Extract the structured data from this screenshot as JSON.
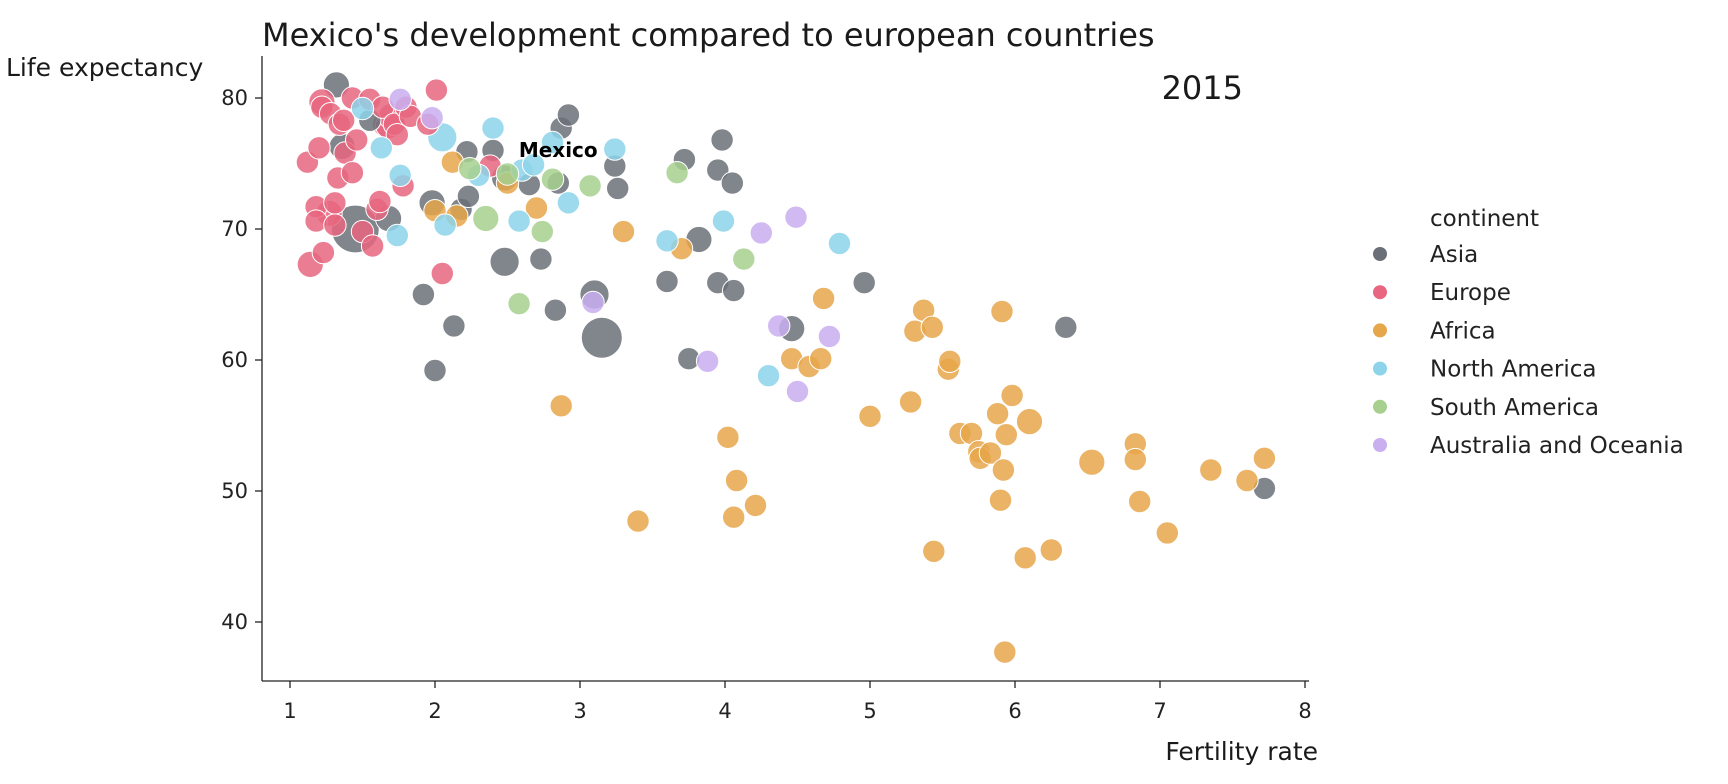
{
  "chart_data": {
    "type": "scatter",
    "title": "Mexico's development compared to european countries",
    "xlabel": "Fertility rate",
    "ylabel": "Life expectancy",
    "year_label": "2015",
    "xlim": [
      0.8,
      8.1
    ],
    "ylim": [
      35.5,
      83.5
    ],
    "xticks": [
      1,
      2,
      3,
      4,
      5,
      6,
      7,
      8
    ],
    "yticks": [
      40,
      50,
      60,
      70,
      80
    ],
    "legend": {
      "title": "continent",
      "position": "right",
      "entries": [
        "Asia",
        "Europe",
        "Africa",
        "North America",
        "South America",
        "Australia and Oceania"
      ]
    },
    "colors": {
      "Asia": "#6b7078",
      "Europe": "#e8667f",
      "Africa": "#e6a64a",
      "North America": "#8dd3ea",
      "South America": "#a7d08f",
      "Australia and Oceania": "#c9aef0"
    },
    "annotation": {
      "text": "Mexico",
      "x": 2.85,
      "y": 74.9
    },
    "series": [
      {
        "name": "Asia",
        "points": [
          {
            "x": 1.32,
            "y": 81.0,
            "s": 2
          },
          {
            "x": 1.36,
            "y": 76.3,
            "s": 2
          },
          {
            "x": 1.45,
            "y": 70.0,
            "s": 14
          },
          {
            "x": 1.55,
            "y": 78.3,
            "s": 1
          },
          {
            "x": 1.68,
            "y": 70.8,
            "s": 2
          },
          {
            "x": 1.92,
            "y": 65.0,
            "s": 1
          },
          {
            "x": 1.98,
            "y": 72.0,
            "s": 2
          },
          {
            "x": 2.0,
            "y": 59.2,
            "s": 1
          },
          {
            "x": 2.13,
            "y": 62.6,
            "s": 1
          },
          {
            "x": 2.18,
            "y": 71.5,
            "s": 1
          },
          {
            "x": 2.23,
            "y": 72.5,
            "s": 1
          },
          {
            "x": 2.22,
            "y": 75.9,
            "s": 1
          },
          {
            "x": 2.4,
            "y": 76.0,
            "s": 1
          },
          {
            "x": 2.48,
            "y": 73.9,
            "s": 2
          },
          {
            "x": 2.48,
            "y": 67.5,
            "s": 3
          },
          {
            "x": 2.65,
            "y": 73.4,
            "s": 1
          },
          {
            "x": 2.73,
            "y": 67.7,
            "s": 1
          },
          {
            "x": 2.83,
            "y": 63.8,
            "s": 1
          },
          {
            "x": 2.85,
            "y": 73.5,
            "s": 1
          },
          {
            "x": 2.87,
            "y": 77.7,
            "s": 1
          },
          {
            "x": 2.92,
            "y": 78.7,
            "s": 1
          },
          {
            "x": 3.1,
            "y": 65.0,
            "s": 3
          },
          {
            "x": 3.15,
            "y": 61.7,
            "s": 9
          },
          {
            "x": 3.24,
            "y": 74.8,
            "s": 1
          },
          {
            "x": 3.26,
            "y": 73.1,
            "s": 1
          },
          {
            "x": 3.6,
            "y": 66.0,
            "s": 1
          },
          {
            "x": 3.72,
            "y": 75.3,
            "s": 1
          },
          {
            "x": 3.75,
            "y": 60.1,
            "s": 1
          },
          {
            "x": 3.82,
            "y": 69.2,
            "s": 2
          },
          {
            "x": 3.95,
            "y": 74.5,
            "s": 1
          },
          {
            "x": 3.95,
            "y": 65.9,
            "s": 1
          },
          {
            "x": 3.98,
            "y": 76.8,
            "s": 1
          },
          {
            "x": 4.05,
            "y": 73.5,
            "s": 1
          },
          {
            "x": 4.06,
            "y": 65.3,
            "s": 1
          },
          {
            "x": 4.46,
            "y": 62.4,
            "s": 2
          },
          {
            "x": 4.96,
            "y": 65.9,
            "s": 1
          },
          {
            "x": 6.35,
            "y": 62.5,
            "s": 1
          },
          {
            "x": 7.72,
            "y": 50.2,
            "s": 1
          }
        ]
      },
      {
        "name": "Europe",
        "points": [
          {
            "x": 1.12,
            "y": 75.1,
            "s": 1
          },
          {
            "x": 1.14,
            "y": 67.3,
            "s": 2
          },
          {
            "x": 1.18,
            "y": 71.7,
            "s": 1
          },
          {
            "x": 1.18,
            "y": 70.6,
            "s": 1
          },
          {
            "x": 1.2,
            "y": 76.2,
            "s": 1
          },
          {
            "x": 1.22,
            "y": 79.7,
            "s": 2
          },
          {
            "x": 1.22,
            "y": 79.3,
            "s": 1
          },
          {
            "x": 1.23,
            "y": 68.2,
            "s": 1
          },
          {
            "x": 1.27,
            "y": 71.2,
            "s": 2
          },
          {
            "x": 1.28,
            "y": 78.8,
            "s": 1
          },
          {
            "x": 1.31,
            "y": 70.3,
            "s": 1
          },
          {
            "x": 1.31,
            "y": 72.0,
            "s": 1
          },
          {
            "x": 1.33,
            "y": 73.9,
            "s": 1
          },
          {
            "x": 1.34,
            "y": 78.0,
            "s": 1
          },
          {
            "x": 1.37,
            "y": 78.3,
            "s": 1
          },
          {
            "x": 1.38,
            "y": 75.8,
            "s": 1
          },
          {
            "x": 1.43,
            "y": 80.0,
            "s": 1
          },
          {
            "x": 1.43,
            "y": 74.3,
            "s": 1
          },
          {
            "x": 1.46,
            "y": 76.8,
            "s": 1
          },
          {
            "x": 1.5,
            "y": 69.8,
            "s": 1
          },
          {
            "x": 1.55,
            "y": 79.9,
            "s": 1
          },
          {
            "x": 1.57,
            "y": 68.7,
            "s": 1
          },
          {
            "x": 1.6,
            "y": 71.5,
            "s": 1
          },
          {
            "x": 1.62,
            "y": 72.1,
            "s": 1
          },
          {
            "x": 1.64,
            "y": 79.3,
            "s": 1
          },
          {
            "x": 1.66,
            "y": 78.0,
            "s": 2
          },
          {
            "x": 1.68,
            "y": 77.9,
            "s": 2
          },
          {
            "x": 1.7,
            "y": 78.6,
            "s": 2
          },
          {
            "x": 1.72,
            "y": 78.0,
            "s": 1
          },
          {
            "x": 1.74,
            "y": 77.2,
            "s": 1
          },
          {
            "x": 1.78,
            "y": 73.3,
            "s": 1
          },
          {
            "x": 1.8,
            "y": 79.3,
            "s": 1
          },
          {
            "x": 1.83,
            "y": 78.6,
            "s": 1
          },
          {
            "x": 1.95,
            "y": 78.0,
            "s": 1
          },
          {
            "x": 2.01,
            "y": 80.6,
            "s": 1
          },
          {
            "x": 2.05,
            "y": 66.6,
            "s": 1
          },
          {
            "x": 2.38,
            "y": 74.8,
            "s": 1
          }
        ]
      },
      {
        "name": "Africa",
        "points": [
          {
            "x": 2.0,
            "y": 71.4,
            "s": 1
          },
          {
            "x": 2.12,
            "y": 75.1,
            "s": 1
          },
          {
            "x": 2.15,
            "y": 71.0,
            "s": 1
          },
          {
            "x": 2.5,
            "y": 73.5,
            "s": 1
          },
          {
            "x": 2.7,
            "y": 71.6,
            "s": 1
          },
          {
            "x": 2.87,
            "y": 56.5,
            "s": 1
          },
          {
            "x": 3.3,
            "y": 69.8,
            "s": 1
          },
          {
            "x": 3.4,
            "y": 47.7,
            "s": 1
          },
          {
            "x": 3.7,
            "y": 68.5,
            "s": 1
          },
          {
            "x": 4.02,
            "y": 54.1,
            "s": 1
          },
          {
            "x": 4.06,
            "y": 48.0,
            "s": 1
          },
          {
            "x": 4.08,
            "y": 50.8,
            "s": 1
          },
          {
            "x": 4.21,
            "y": 48.9,
            "s": 1
          },
          {
            "x": 4.46,
            "y": 60.1,
            "s": 1
          },
          {
            "x": 4.58,
            "y": 59.5,
            "s": 1
          },
          {
            "x": 4.66,
            "y": 60.1,
            "s": 1
          },
          {
            "x": 4.68,
            "y": 64.7,
            "s": 1
          },
          {
            "x": 5.0,
            "y": 55.7,
            "s": 1
          },
          {
            "x": 5.28,
            "y": 56.8,
            "s": 1
          },
          {
            "x": 5.31,
            "y": 62.2,
            "s": 1
          },
          {
            "x": 5.37,
            "y": 63.8,
            "s": 1
          },
          {
            "x": 5.43,
            "y": 62.5,
            "s": 1
          },
          {
            "x": 5.44,
            "y": 45.4,
            "s": 1
          },
          {
            "x": 5.54,
            "y": 59.3,
            "s": 1
          },
          {
            "x": 5.55,
            "y": 59.9,
            "s": 1
          },
          {
            "x": 5.62,
            "y": 54.4,
            "s": 1
          },
          {
            "x": 5.7,
            "y": 54.4,
            "s": 1
          },
          {
            "x": 5.75,
            "y": 53.0,
            "s": 1
          },
          {
            "x": 5.76,
            "y": 52.5,
            "s": 1
          },
          {
            "x": 5.83,
            "y": 52.9,
            "s": 1
          },
          {
            "x": 5.88,
            "y": 55.9,
            "s": 1
          },
          {
            "x": 5.9,
            "y": 49.3,
            "s": 1
          },
          {
            "x": 5.91,
            "y": 63.7,
            "s": 1
          },
          {
            "x": 5.92,
            "y": 51.6,
            "s": 1
          },
          {
            "x": 5.93,
            "y": 37.7,
            "s": 1
          },
          {
            "x": 5.94,
            "y": 54.3,
            "s": 1
          },
          {
            "x": 5.98,
            "y": 57.3,
            "s": 1
          },
          {
            "x": 6.07,
            "y": 44.9,
            "s": 1
          },
          {
            "x": 6.1,
            "y": 55.3,
            "s": 2
          },
          {
            "x": 6.25,
            "y": 45.5,
            "s": 1
          },
          {
            "x": 6.53,
            "y": 52.2,
            "s": 2
          },
          {
            "x": 6.83,
            "y": 53.6,
            "s": 1
          },
          {
            "x": 6.83,
            "y": 52.4,
            "s": 1
          },
          {
            "x": 6.86,
            "y": 49.2,
            "s": 1
          },
          {
            "x": 7.05,
            "y": 46.8,
            "s": 1
          },
          {
            "x": 7.35,
            "y": 51.6,
            "s": 1
          },
          {
            "x": 7.6,
            "y": 50.8,
            "s": 1
          },
          {
            "x": 7.72,
            "y": 52.5,
            "s": 1
          }
        ]
      },
      {
        "name": "North America",
        "points": [
          {
            "x": 1.5,
            "y": 79.2,
            "s": 1
          },
          {
            "x": 1.63,
            "y": 76.2,
            "s": 1
          },
          {
            "x": 1.74,
            "y": 69.5,
            "s": 1
          },
          {
            "x": 1.76,
            "y": 74.1,
            "s": 1
          },
          {
            "x": 2.05,
            "y": 77.0,
            "s": 3
          },
          {
            "x": 2.07,
            "y": 70.3,
            "s": 1
          },
          {
            "x": 2.3,
            "y": 74.1,
            "s": 1
          },
          {
            "x": 2.4,
            "y": 77.7,
            "s": 1
          },
          {
            "x": 2.58,
            "y": 70.6,
            "s": 1
          },
          {
            "x": 2.6,
            "y": 74.5,
            "s": 1
          },
          {
            "x": 2.68,
            "y": 74.9,
            "s": 1
          },
          {
            "x": 2.81,
            "y": 76.6,
            "s": 1
          },
          {
            "x": 2.92,
            "y": 72.0,
            "s": 1
          },
          {
            "x": 3.24,
            "y": 76.1,
            "s": 1
          },
          {
            "x": 3.6,
            "y": 69.1,
            "s": 1
          },
          {
            "x": 3.99,
            "y": 70.6,
            "s": 1
          },
          {
            "x": 4.3,
            "y": 58.8,
            "s": 1
          },
          {
            "x": 4.79,
            "y": 68.9,
            "s": 1
          }
        ]
      },
      {
        "name": "South America",
        "points": [
          {
            "x": 2.24,
            "y": 74.6,
            "s": 1
          },
          {
            "x": 2.35,
            "y": 70.8,
            "s": 2
          },
          {
            "x": 2.5,
            "y": 74.2,
            "s": 1
          },
          {
            "x": 2.58,
            "y": 64.3,
            "s": 1
          },
          {
            "x": 2.74,
            "y": 69.8,
            "s": 1
          },
          {
            "x": 2.81,
            "y": 73.8,
            "s": 1
          },
          {
            "x": 3.07,
            "y": 73.3,
            "s": 1
          },
          {
            "x": 3.67,
            "y": 74.3,
            "s": 1
          },
          {
            "x": 4.13,
            "y": 67.7,
            "s": 1
          }
        ]
      },
      {
        "name": "Australia and Oceania",
        "points": [
          {
            "x": 1.76,
            "y": 79.9,
            "s": 1
          },
          {
            "x": 1.98,
            "y": 78.5,
            "s": 1
          },
          {
            "x": 3.09,
            "y": 64.4,
            "s": 1
          },
          {
            "x": 3.88,
            "y": 59.9,
            "s": 1
          },
          {
            "x": 4.25,
            "y": 69.7,
            "s": 1
          },
          {
            "x": 4.37,
            "y": 62.6,
            "s": 1
          },
          {
            "x": 4.49,
            "y": 70.9,
            "s": 1
          },
          {
            "x": 4.5,
            "y": 57.6,
            "s": 1
          },
          {
            "x": 4.72,
            "y": 61.8,
            "s": 1
          }
        ]
      }
    ]
  }
}
